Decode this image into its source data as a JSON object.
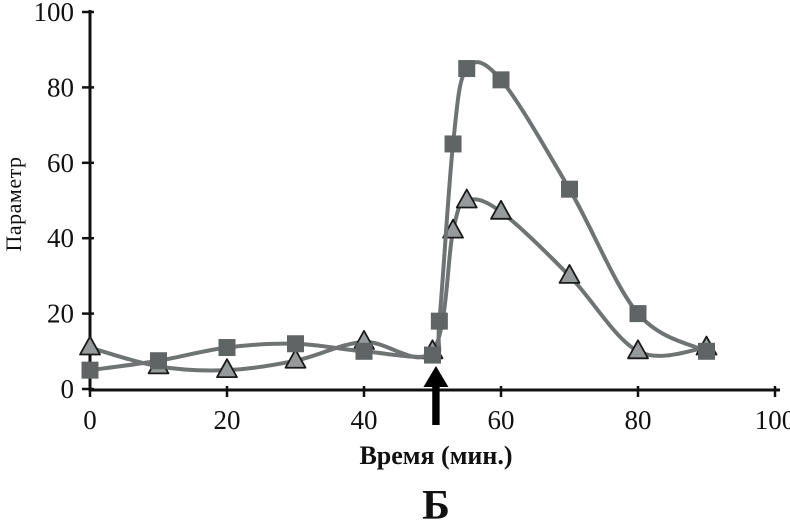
{
  "figure": {
    "ylabel": "Параметр",
    "xlabel": "Время (мин.)",
    "panel_label": "Б"
  },
  "chart_data": {
    "type": "line",
    "title": "",
    "xlabel": "Время (мин.)",
    "ylabel": "Параметр",
    "panel_label": "Б",
    "xlim": [
      0,
      100
    ],
    "ylim": [
      0,
      100
    ],
    "x_ticks": [
      0,
      20,
      40,
      60,
      80,
      100
    ],
    "y_ticks": [
      0,
      20,
      40,
      60,
      80,
      100
    ],
    "grid": false,
    "legend": "none",
    "axis_color": "#111111",
    "line_color": "#6f7374",
    "series": [
      {
        "name": "triangle-series",
        "marker": "triangle",
        "marker_fill": "#969a9b",
        "marker_stroke": "#1a1a1a",
        "smooth": true,
        "points": [
          [
            0,
            11
          ],
          [
            10,
            6
          ],
          [
            20,
            5
          ],
          [
            30,
            7.5
          ],
          [
            40,
            12.5
          ],
          [
            50,
            10
          ],
          [
            53,
            42
          ],
          [
            55,
            50
          ],
          [
            60,
            47
          ],
          [
            70,
            30
          ],
          [
            80,
            10
          ],
          [
            90,
            11
          ]
        ]
      },
      {
        "name": "square-series",
        "marker": "square",
        "marker_fill": "#606465",
        "marker_stroke": "#606465",
        "smooth": true,
        "points": [
          [
            0,
            5
          ],
          [
            10,
            7.5
          ],
          [
            20,
            11
          ],
          [
            30,
            12
          ],
          [
            40,
            10
          ],
          [
            50,
            9
          ],
          [
            51,
            18
          ],
          [
            53,
            65
          ],
          [
            55,
            85
          ],
          [
            60,
            82
          ],
          [
            70,
            53
          ],
          [
            80,
            20
          ],
          [
            90,
            10
          ]
        ]
      }
    ],
    "annotations": [
      {
        "type": "arrow",
        "x": 50.5,
        "direction": "up",
        "color": "#000000"
      }
    ]
  }
}
